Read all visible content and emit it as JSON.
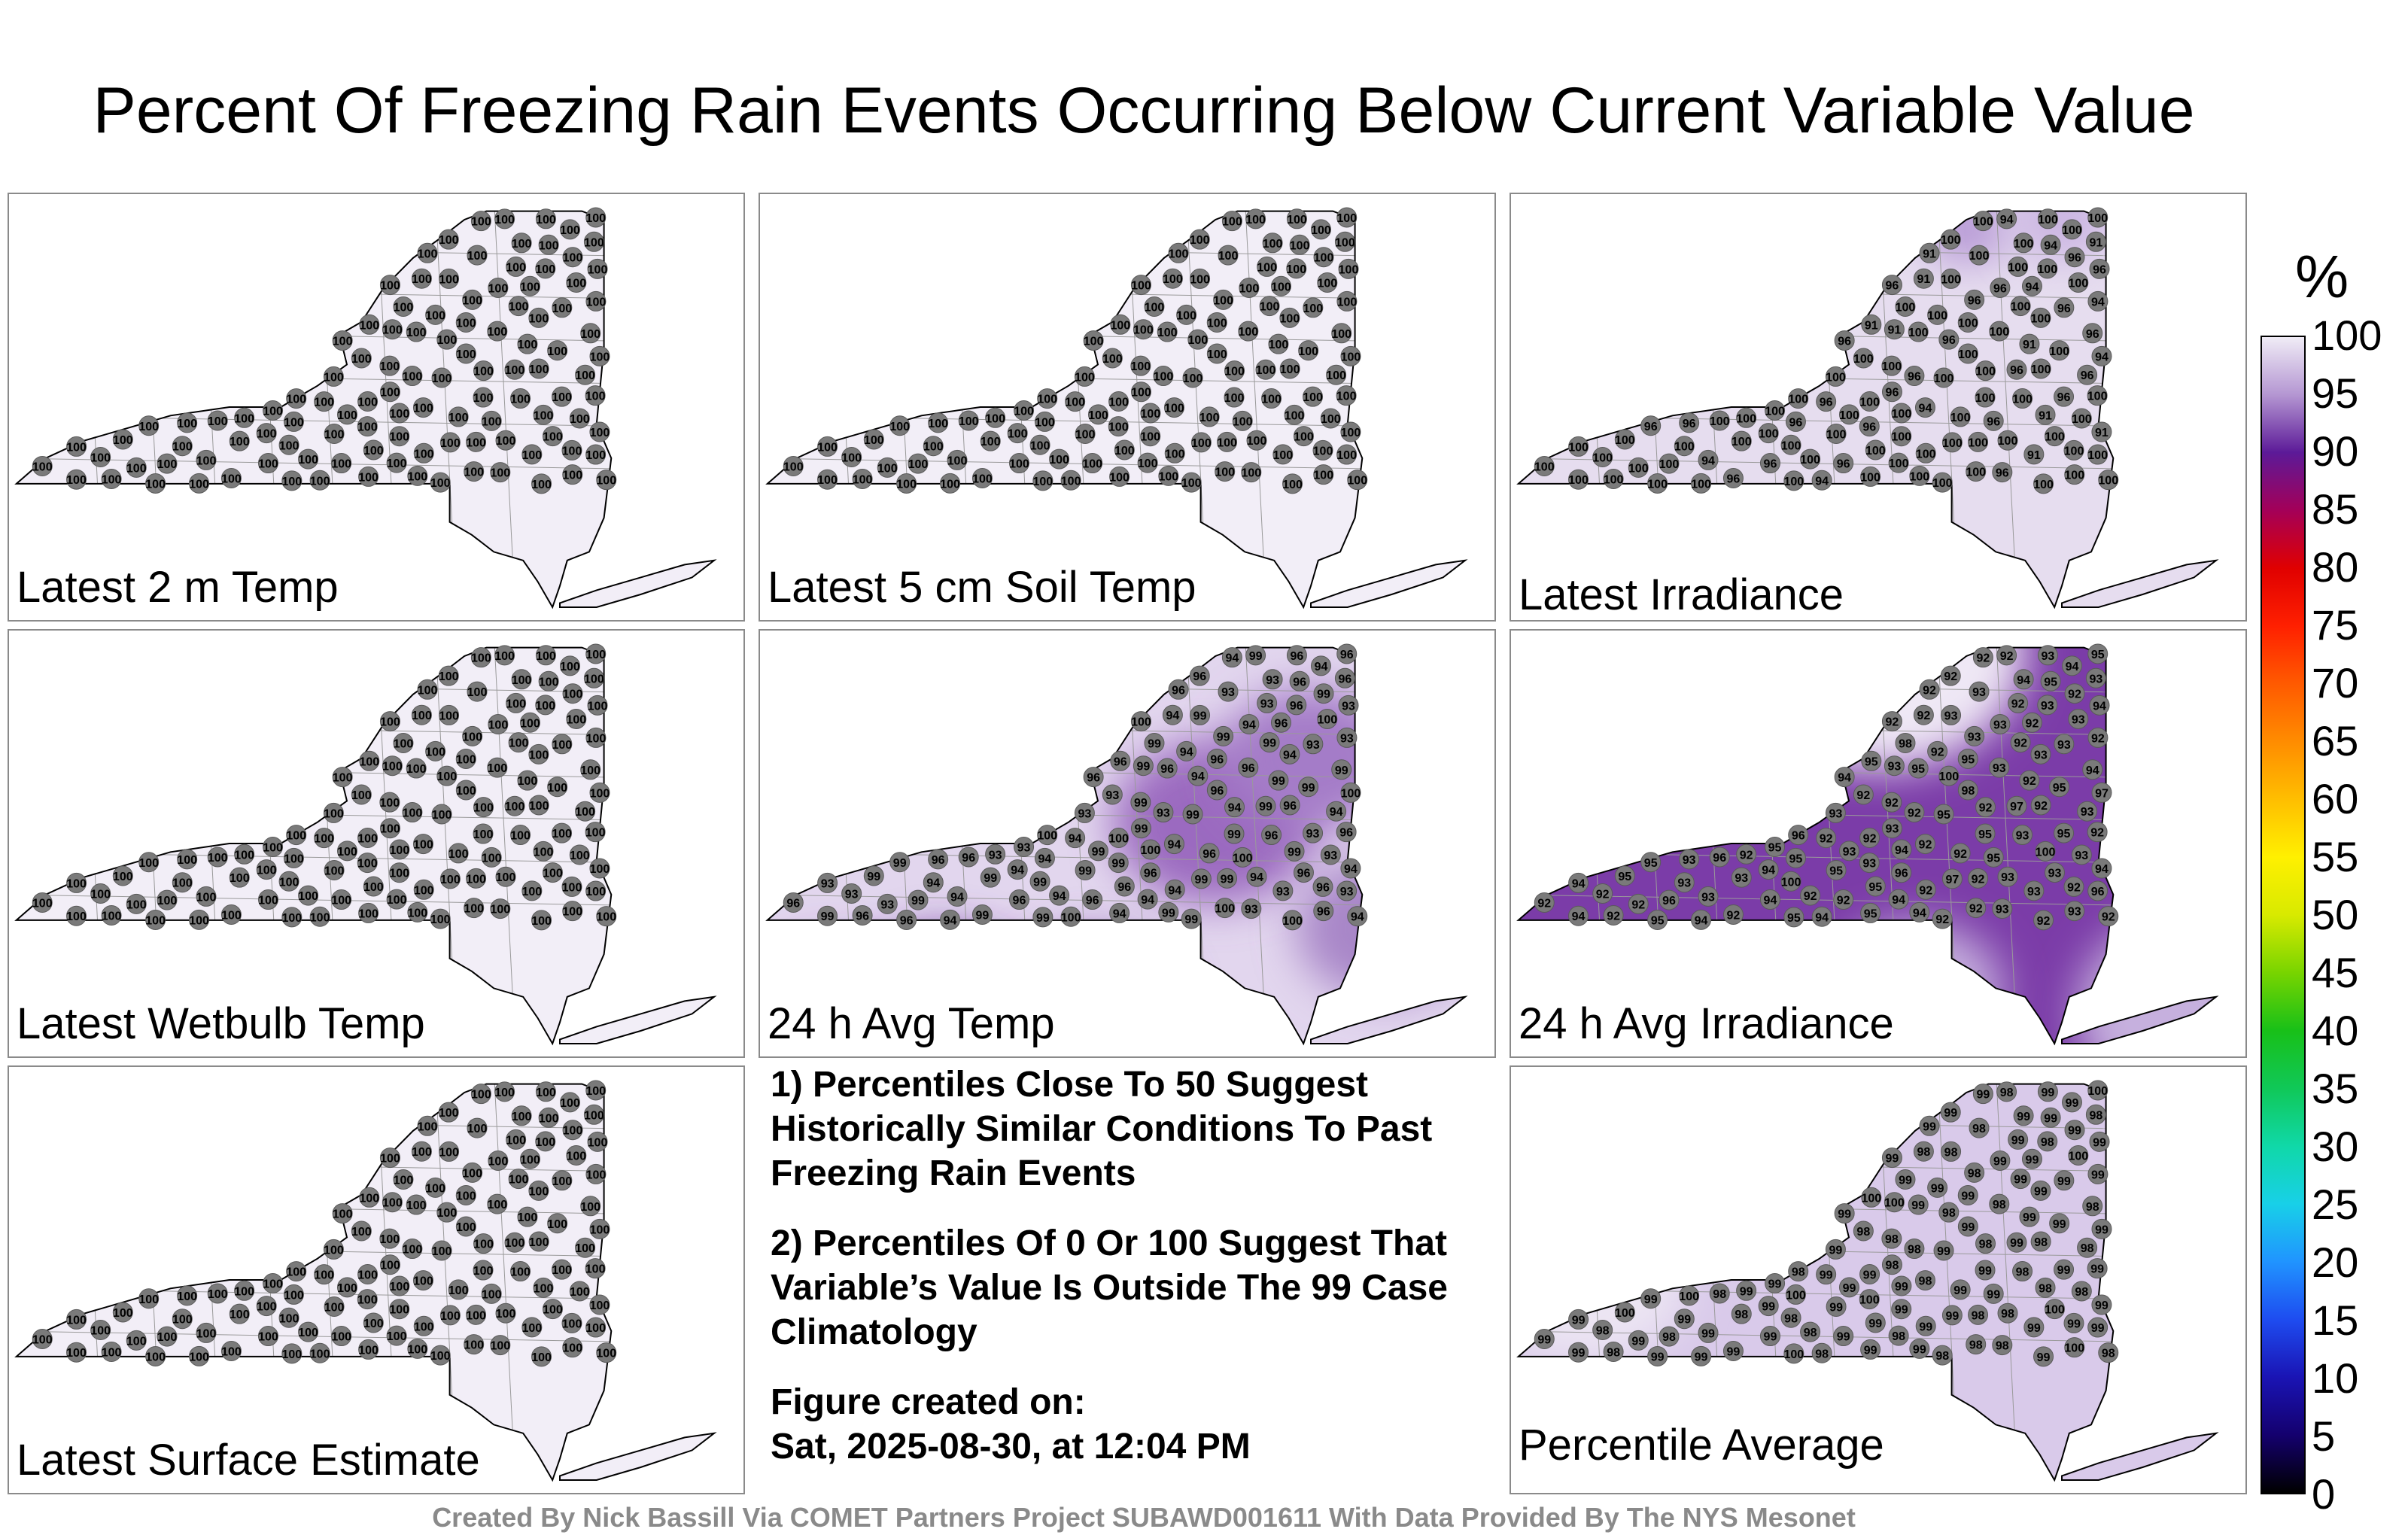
{
  "title": "Percent Of Freezing Rain Events Occurring Below Current Variable Value",
  "colorbar": {
    "unit": "%",
    "ticks": [
      "100",
      "95",
      "90",
      "85",
      "80",
      "75",
      "70",
      "65",
      "60",
      "55",
      "50",
      "45",
      "40",
      "35",
      "30",
      "25",
      "20",
      "15",
      "10",
      "5",
      "0"
    ],
    "stops": [
      {
        "v": 0,
        "c": "#000000"
      },
      {
        "v": 5,
        "c": "#14006e"
      },
      {
        "v": 10,
        "c": "#1a14b4"
      },
      {
        "v": 15,
        "c": "#1e4cf0"
      },
      {
        "v": 20,
        "c": "#2094ff"
      },
      {
        "v": 25,
        "c": "#18d0e8"
      },
      {
        "v": 30,
        "c": "#10d8a8"
      },
      {
        "v": 35,
        "c": "#10c858"
      },
      {
        "v": 40,
        "c": "#18c018"
      },
      {
        "v": 45,
        "c": "#78d400"
      },
      {
        "v": 50,
        "c": "#d8ea00"
      },
      {
        "v": 55,
        "c": "#fff000"
      },
      {
        "v": 60,
        "c": "#ffbe00"
      },
      {
        "v": 65,
        "c": "#ff8c00"
      },
      {
        "v": 70,
        "c": "#ff5a00"
      },
      {
        "v": 75,
        "c": "#ff2000"
      },
      {
        "v": 80,
        "c": "#e00000"
      },
      {
        "v": 85,
        "c": "#a40058"
      },
      {
        "v": 90,
        "c": "#5c1a98"
      },
      {
        "v": 95,
        "c": "#b496d2"
      },
      {
        "v": 100,
        "c": "#f0ecf6"
      }
    ]
  },
  "panels": [
    {
      "label": "Latest 2 m Temp",
      "fill": "#f2eef7",
      "uniform": 100,
      "blobs": []
    },
    {
      "label": "Latest 5 cm Soil Temp",
      "fill": "#f2eef7",
      "uniform": 100,
      "blobs": []
    },
    {
      "label": "Latest Irradiance",
      "fill": "#e6ddef",
      "uniform": null,
      "values": [
        91,
        94,
        96,
        96,
        100,
        100,
        100,
        96,
        100,
        100,
        100,
        100,
        100,
        100
      ],
      "blobs": [
        {
          "u": 0.62,
          "v": 0.08,
          "r": 0.06,
          "c": "#b79ad6"
        },
        {
          "u": 0.75,
          "v": 0.06,
          "r": 0.07,
          "c": "#cbb5e2"
        }
      ]
    },
    {
      "label": "Latest Wetbulb Temp",
      "fill": "#f2eef7",
      "uniform": 100,
      "blobs": []
    },
    {
      "label": "24 h Avg Temp",
      "fill": "#e2d6ee",
      "uniform": null,
      "values": [
        94,
        93,
        94,
        93,
        93,
        94,
        96,
        99,
        99,
        96,
        99,
        96,
        93,
        94,
        96,
        99,
        100,
        99,
        96,
        99,
        99,
        96,
        94,
        93,
        96,
        100,
        99,
        100,
        96,
        94
      ],
      "blobs": [
        {
          "u": 0.1,
          "v": 0.88,
          "r": 0.1,
          "c": "#7a3fa8"
        },
        {
          "u": 0.25,
          "v": 0.9,
          "r": 0.14,
          "c": "#6b2e9e"
        },
        {
          "u": 0.45,
          "v": 0.88,
          "r": 0.12,
          "c": "#8a55b6"
        },
        {
          "u": 0.62,
          "v": 0.45,
          "r": 0.14,
          "c": "#9b6bc0"
        },
        {
          "u": 0.75,
          "v": 0.3,
          "r": 0.12,
          "c": "#a47bc8"
        },
        {
          "u": 0.85,
          "v": 0.7,
          "r": 0.12,
          "c": "#a886c8"
        }
      ]
    },
    {
      "label": "24 h Avg Irradiance",
      "fill": "#7b3ca8",
      "uniform": null,
      "values": [
        92,
        92,
        93,
        92,
        92,
        94,
        93,
        95,
        92,
        92,
        95,
        93,
        94,
        92,
        93,
        92,
        92,
        97,
        93,
        92,
        93,
        94,
        92,
        93,
        95,
        92,
        96,
        94,
        95,
        93,
        100,
        95,
        94,
        93,
        96,
        95,
        92,
        93,
        98,
        95
      ],
      "blobs": [
        {
          "u": 0.05,
          "v": 0.2,
          "r": 0.18,
          "c": "#efe8f5"
        },
        {
          "u": 0.25,
          "v": 0.1,
          "r": 0.22,
          "c": "#efe8f5"
        },
        {
          "u": 0.5,
          "v": 0.05,
          "r": 0.2,
          "c": "#efe8f5"
        },
        {
          "u": 0.95,
          "v": 0.9,
          "r": 0.18,
          "c": "#c6b0de"
        },
        {
          "u": 0.55,
          "v": 0.85,
          "r": 0.12,
          "c": "#c6b0de"
        }
      ]
    },
    {
      "label": "Latest Surface Estimate",
      "fill": "#f2eef7",
      "uniform": 100,
      "blobs": []
    },
    {
      "label": "Percentile Average",
      "fill": "#d9caea",
      "uniform": null,
      "values": [
        98,
        99,
        99,
        98,
        99,
        98,
        100,
        99,
        98,
        99,
        99,
        98,
        99,
        99,
        98,
        98,
        99,
        99,
        100,
        99,
        98,
        99,
        98,
        99,
        99,
        99,
        98,
        99,
        100,
        99,
        98,
        99,
        99,
        98,
        99,
        100,
        99,
        98,
        99,
        99
      ],
      "blobs": [
        {
          "u": 0.1,
          "v": 0.5,
          "r": 0.14,
          "c": "#ece5f3"
        },
        {
          "u": 0.2,
          "v": 0.3,
          "r": 0.1,
          "c": "#ece5f3"
        }
      ]
    }
  ],
  "notes": {
    "note1": "1) Percentiles Close To 50 Suggest Historically Similar Conditions To Past Freezing Rain Events",
    "note2": "2) Percentiles Of 0 Or 100 Suggest That Variable’s Value Is Outside The 99 Case Climatology",
    "created_label": "Figure created on:",
    "created_date": "Sat, 2025-08-30, at 12:04 PM"
  },
  "footer": "Created By Nick Bassill Via COMET Partners Project SUBAWD001611 With Data Provided By The NYS Mesonet"
}
